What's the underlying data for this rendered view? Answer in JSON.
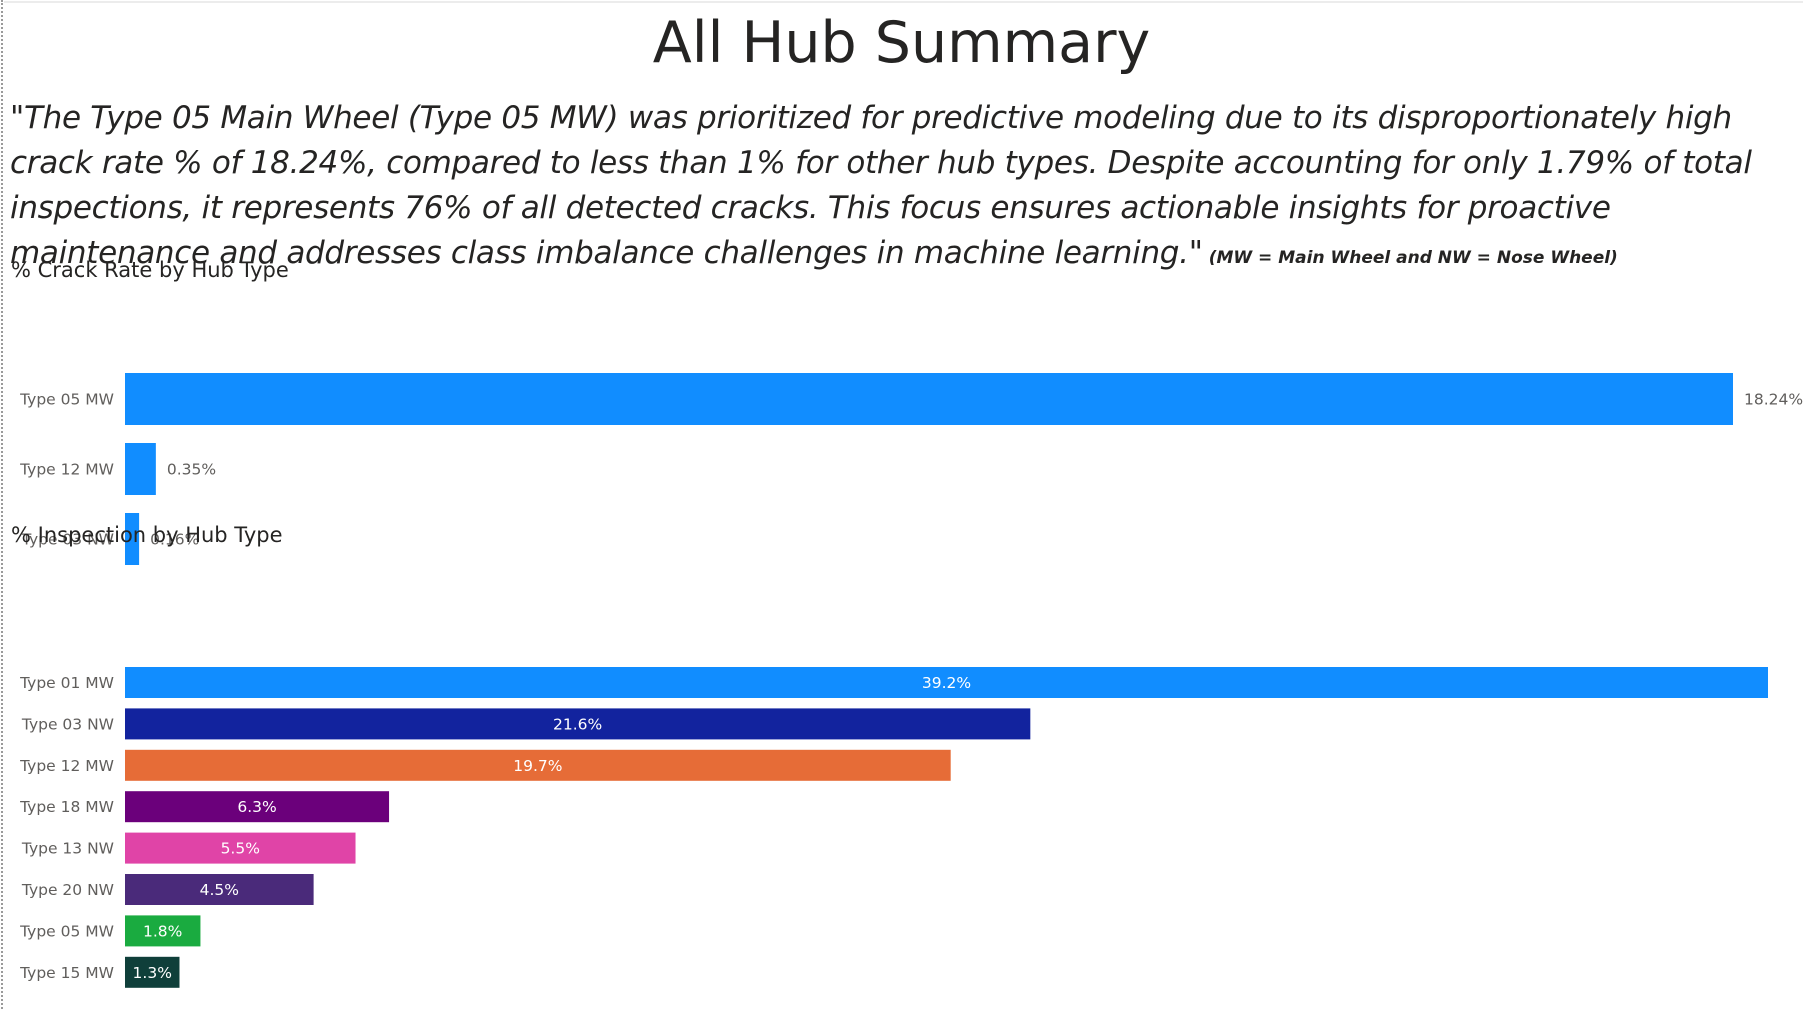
{
  "report": {
    "title": "All Hub Summary",
    "summary": "\"The Type 05 Main Wheel (Type 05 MW) was prioritized for predictive modeling due to its disproportionately high crack rate % of 18.24%, compared to less than 1% for other hub types. Despite accounting for only 1.79% of total inspections, it represents 76% of all detected cracks. This focus ensures actionable insights for proactive maintenance and addresses class imbalance challenges in machine learning.\"",
    "note": "(MW = Main Wheel and NW = Nose Wheel)"
  },
  "chart_data": [
    {
      "type": "bar",
      "orientation": "horizontal",
      "title": "% Crack Rate by Hub Type",
      "categories": [
        "Type 05 MW",
        "Type 12 MW",
        "Type 03 NW"
      ],
      "values": [
        18.24,
        0.35,
        0.16
      ],
      "labels": [
        "18.24%",
        "0.35%",
        "0.16%"
      ],
      "xlim": [
        0,
        18.24
      ],
      "colors": [
        "#118DFF",
        "#118DFF",
        "#118DFF"
      ],
      "data_label_position": "outside",
      "grid": false,
      "legend": "none"
    },
    {
      "type": "bar",
      "orientation": "horizontal",
      "title": "% Inspection by Hub Type",
      "categories": [
        "Type 01 MW",
        "Type 03 NW",
        "Type 12 MW",
        "Type 18 MW",
        "Type 13 NW",
        "Type 20 NW",
        "Type 05 MW",
        "Type 15 MW"
      ],
      "values": [
        39.2,
        21.6,
        19.7,
        6.3,
        5.5,
        4.5,
        1.8,
        1.3
      ],
      "labels": [
        "39.2%",
        "21.6%",
        "19.7%",
        "6.3%",
        "5.5%",
        "4.5%",
        "1.8%",
        "1.3%"
      ],
      "xlim": [
        0,
        39.2
      ],
      "colors": [
        "#118DFF",
        "#12239E",
        "#E66C37",
        "#6B007B",
        "#E044A7",
        "#4A2A7A",
        "#1AAB40",
        "#0F3F3A"
      ],
      "data_label_position": "inside-center",
      "grid": false,
      "legend": "none"
    }
  ]
}
